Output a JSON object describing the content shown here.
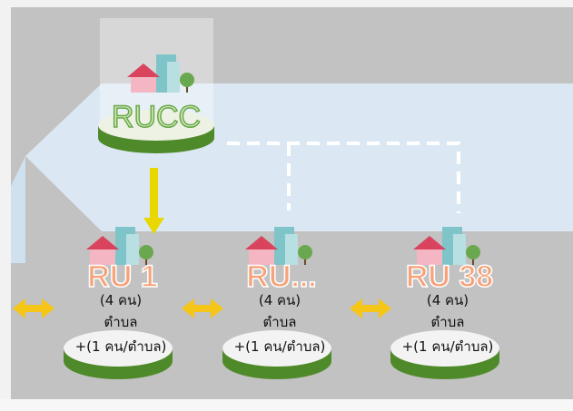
{
  "hub": {
    "label": "RUCC"
  },
  "nodes": [
    {
      "label": "RU 1",
      "lines": [
        "(4 คน)",
        "ตำบล",
        "+(1 คน/ตำบล)"
      ]
    },
    {
      "label": "RU...",
      "lines": [
        "(4 คน)",
        "ตำบล",
        "+(1 คน/ตำบล)"
      ]
    },
    {
      "label": "RU 38",
      "lines": [
        "(4 คน)",
        "ตำบล",
        "+(1 คน/ตำบล)"
      ]
    }
  ]
}
